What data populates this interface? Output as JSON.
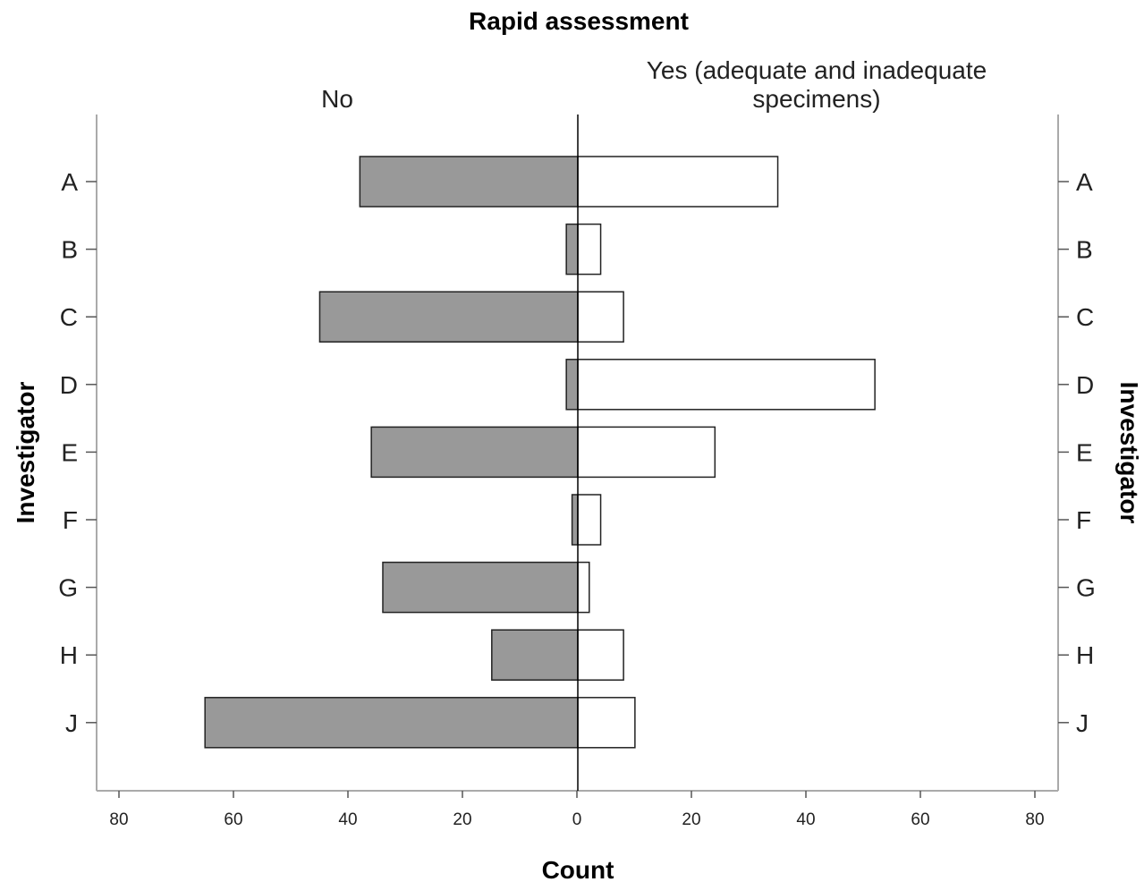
{
  "chart_data": {
    "type": "bar",
    "title": "Rapid assessment",
    "categories": [
      "A",
      "B",
      "C",
      "D",
      "E",
      "F",
      "G",
      "H",
      "J"
    ],
    "series": [
      {
        "name": "No",
        "values": [
          38,
          2,
          45,
          2,
          36,
          1,
          34,
          15,
          65
        ],
        "color": "#999999"
      },
      {
        "name": "Yes (adequate and inadequate specimens)",
        "name_lines": [
          "Yes (adequate and inadequate",
          "specimens)"
        ],
        "values": [
          35,
          4,
          8,
          52,
          24,
          4,
          2,
          8,
          10
        ],
        "color": "#ffffff"
      }
    ],
    "xlabel": "Count",
    "ylabel": "Investigator",
    "x_ticks": [
      "80",
      "60",
      "40",
      "20",
      "0",
      "20",
      "40",
      "60",
      "80"
    ],
    "xlim": [
      -80,
      80
    ],
    "grid": false,
    "orientation": "horizontal",
    "layout": "population-pyramid"
  }
}
